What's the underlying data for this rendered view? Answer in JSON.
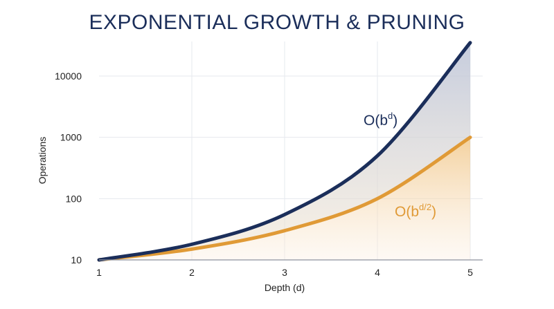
{
  "chart_data": {
    "type": "line",
    "title": "EXPONENTIAL GROWTH & PRUNING",
    "xlabel": "Depth (d)",
    "ylabel": "Operations",
    "yscale": "log",
    "xlim": [
      1,
      5
    ],
    "ylim": [
      10,
      40000
    ],
    "x_ticks": [
      "1",
      "2",
      "3",
      "4",
      "5"
    ],
    "y_ticks": [
      "10",
      "100",
      "1000",
      "10000"
    ],
    "grid": true,
    "series": [
      {
        "name": "O(b^d)",
        "label_main": "O(b",
        "label_sup": "d",
        "label_close": ")",
        "color": "#1b2e5a",
        "x": [
          1,
          2,
          3,
          4,
          5
        ],
        "values": [
          10,
          18,
          55,
          500,
          35000
        ]
      },
      {
        "name": "O(b^{d/2})",
        "label_main": "O(b",
        "label_sup": "d/2",
        "label_close": ")",
        "color": "#e09a36",
        "x": [
          1,
          2,
          3,
          4,
          5
        ],
        "values": [
          10,
          15,
          30,
          100,
          1000
        ]
      }
    ]
  }
}
